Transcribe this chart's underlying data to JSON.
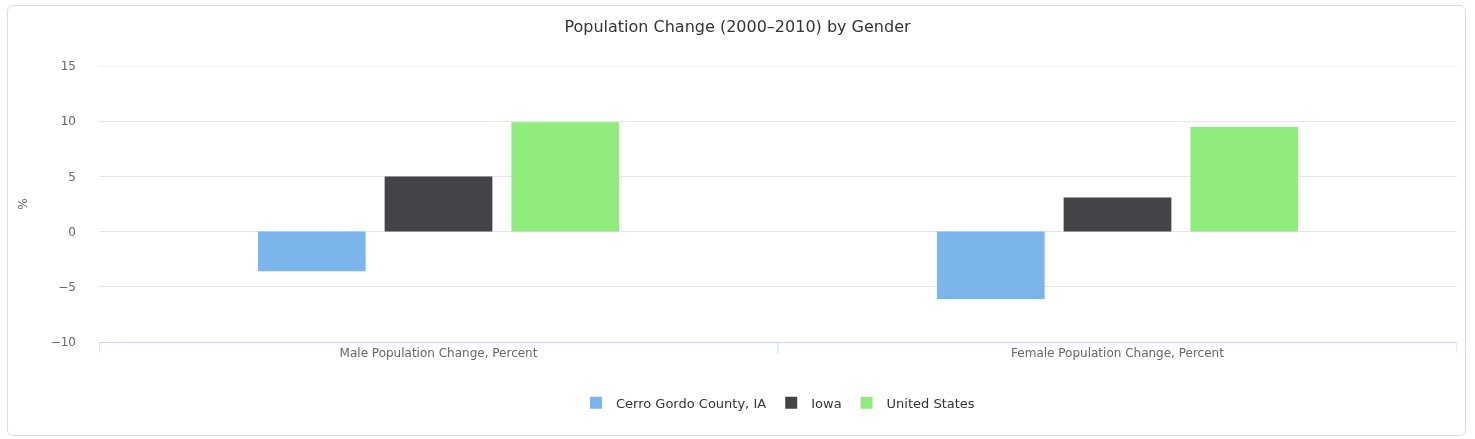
{
  "chart_data": {
    "type": "bar",
    "title": "Population Change (2000–2010) by Gender",
    "ylabel": "%",
    "categories": [
      "Male Population Change, Percent",
      "Female Population Change, Percent"
    ],
    "series": [
      {
        "name": "Cerro Gordo County, IA",
        "color": "#7cb5ec",
        "values": [
          -3.6,
          -6.1
        ]
      },
      {
        "name": "Iowa",
        "color": "#434348",
        "values": [
          5.0,
          3.1
        ]
      },
      {
        "name": "United States",
        "color": "#90ed7d",
        "values": [
          9.9,
          9.5
        ]
      }
    ],
    "ylim": [
      -10,
      15
    ],
    "yticks": [
      -10,
      -5,
      0,
      5,
      10,
      15
    ],
    "grid": "y",
    "legend": "bottom"
  }
}
